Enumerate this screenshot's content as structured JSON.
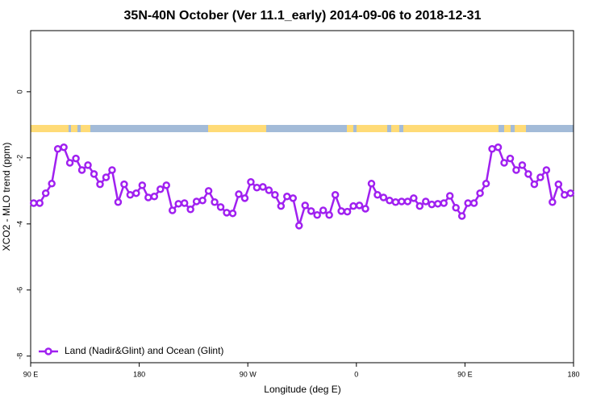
{
  "chart_data": {
    "type": "line",
    "title": "35N-40N October (Ver 11.1_early)   2014-09-06 to 2018-12-31",
    "x_label": "Longitude (deg E)",
    "y_label": "XCO2 - MLO trend (ppm)",
    "xlim": [
      90,
      540
    ],
    "xticks": [
      {
        "value": 90,
        "label": "90 E"
      },
      180,
      {
        "value": 270,
        "label": "90 W"
      },
      {
        "value": 360,
        "label": "0"
      },
      {
        "value": 450,
        "label": "90 E"
      },
      {
        "value": 540,
        "label": "180"
      }
    ],
    "ylim": [
      -8.2,
      1.85
    ],
    "yticks": [
      -8,
      -6,
      -4,
      -2,
      0
    ],
    "legend": "bottom-left",
    "x": [
      92.5,
      97.5,
      102.5,
      107.5,
      112.5,
      117.5,
      122.5,
      127.5,
      132.5,
      137.5,
      142.5,
      147.5,
      152.5,
      157.5,
      162.5,
      167.5,
      172.5,
      177.5,
      182.5,
      187.5,
      192.5,
      197.5,
      202.5,
      207.5,
      212.5,
      217.5,
      222.5,
      227.5,
      232.5,
      237.5,
      242.5,
      247.5,
      252.5,
      257.5,
      262.5,
      267.5,
      272.5,
      277.5,
      282.5,
      287.5,
      292.5,
      297.5,
      302.5,
      307.5,
      312.5,
      317.5,
      322.5,
      327.5,
      332.5,
      337.5,
      342.5,
      347.5,
      352.5,
      357.5,
      362.5,
      367.5,
      372.5,
      377.5,
      382.5,
      387.5,
      392.5,
      397.5,
      402.5,
      407.5,
      412.5,
      417.5,
      422.5,
      427.5,
      432.5,
      437.5,
      442.5,
      447.5,
      452.5,
      457.5,
      462.5,
      467.5,
      472.5,
      477.5,
      482.5,
      487.5,
      492.5,
      497.5,
      502.5,
      507.5,
      512.5,
      517.5,
      522.5,
      527.5,
      532.5,
      537.5
    ],
    "series": [
      {
        "name": "Land (Nadir&Glint) and Ocean (Glint)",
        "color": "#a020f0",
        "values": [
          -3.37,
          -3.37,
          -3.07,
          -2.78,
          -1.73,
          -1.68,
          -2.15,
          -2.02,
          -2.37,
          -2.22,
          -2.49,
          -2.8,
          -2.59,
          -2.37,
          -3.34,
          -2.8,
          -3.12,
          -3.07,
          -2.83,
          -3.2,
          -3.17,
          -2.95,
          -2.83,
          -3.59,
          -3.39,
          -3.37,
          -3.56,
          -3.32,
          -3.29,
          -3.0,
          -3.34,
          -3.49,
          -3.66,
          -3.68,
          -3.1,
          -3.22,
          -2.73,
          -2.9,
          -2.88,
          -2.98,
          -3.12,
          -3.46,
          -3.17,
          -3.22,
          -4.05,
          -3.44,
          -3.61,
          -3.73,
          -3.59,
          -3.73,
          -3.12,
          -3.61,
          -3.63,
          -3.46,
          -3.44,
          -3.54,
          -2.78,
          -3.12,
          -3.2,
          -3.29,
          -3.34,
          -3.32,
          -3.32,
          -3.22,
          -3.46,
          -3.32,
          -3.41,
          -3.39,
          -3.37,
          -3.15,
          -3.51,
          -3.76,
          -3.37,
          -3.37,
          -3.07,
          -2.78,
          -1.73,
          -1.68,
          -2.15,
          -2.02,
          -2.37,
          -2.22,
          -2.49,
          -2.8,
          -2.59,
          -2.37,
          -3.34,
          -2.8,
          -3.12,
          -3.07
        ]
      }
    ]
  }
}
